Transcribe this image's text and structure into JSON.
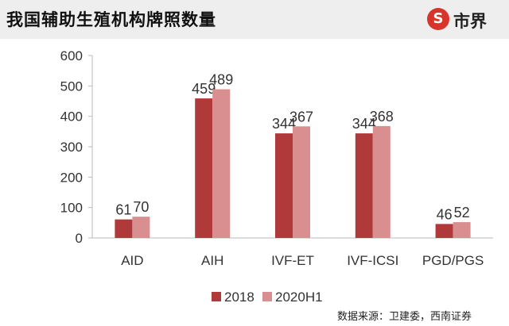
{
  "header": {
    "title": "我国辅助生殖机构牌照数量",
    "logo_text": "市界",
    "logo_mark": "S"
  },
  "source": "数据来源：卫建委，西南证券",
  "colors": {
    "series_2018": "#b03a3a",
    "series_2020H1": "#d98f8f",
    "header_bg": "#eeeeee",
    "logo_red": "#d9342b"
  },
  "chart_data": {
    "type": "bar",
    "title": "我国辅助生殖机构牌照数量",
    "categories": [
      "AID",
      "AIH",
      "IVF-ET",
      "IVF-ICSI",
      "PGD/PGS"
    ],
    "series": [
      {
        "name": "2018",
        "values": [
          61,
          459,
          344,
          344,
          46
        ],
        "labels": [
          "61",
          "459",
          "344",
          "344",
          "46"
        ]
      },
      {
        "name": "2020H1",
        "values": [
          70,
          489,
          367,
          368,
          52
        ],
        "labels": [
          "70",
          "489",
          "367",
          "368",
          "52"
        ]
      }
    ],
    "yticks": [
      "0",
      "100",
      "200",
      "300",
      "400",
      "500",
      "600"
    ],
    "ylim": [
      0,
      600
    ],
    "grid": false,
    "legend": "bottom",
    "xlabel": "",
    "ylabel": ""
  }
}
